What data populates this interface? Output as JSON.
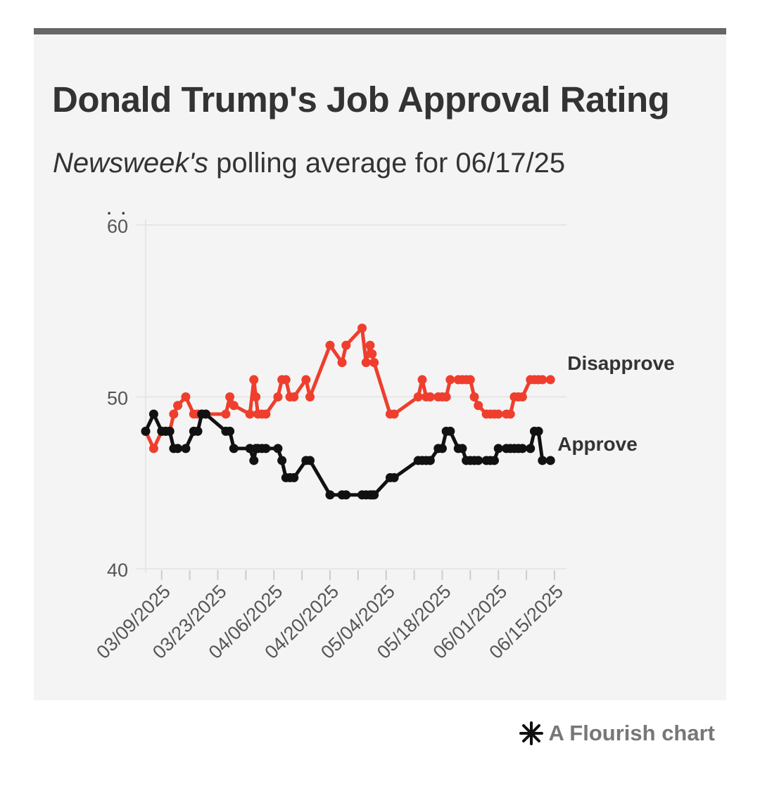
{
  "header": {
    "title": "Donald Trump's Job Approval Rating",
    "subtitle_italic": "Newsweek's",
    "subtitle_rest": " polling average for 06/17/25",
    "dots": ". ."
  },
  "credit": {
    "text": "A Flourish chart",
    "icon": "flourish-asterisk-icon"
  },
  "colors": {
    "approve": "#111111",
    "disapprove": "#ef3e2d",
    "axis_text": "#555555",
    "grid": "#e6e6e6",
    "label": "#333333"
  },
  "chart_data": {
    "type": "line",
    "title": "Donald Trump's Job Approval Rating",
    "x_start": "03/05/2025",
    "x_tick_labels": [
      "03/09/2025",
      "03/23/2025",
      "04/06/2025",
      "04/20/2025",
      "05/04/2025",
      "05/18/2025",
      "06/01/2025",
      "06/15/2025"
    ],
    "x_tick_days": [
      4,
      18,
      32,
      46,
      60,
      74,
      88,
      102
    ],
    "x_minor_tick_days": [
      11,
      25,
      39,
      53,
      67,
      81,
      95
    ],
    "xlim": [
      0,
      105
    ],
    "ylim": [
      40,
      60
    ],
    "y_ticks": [
      40,
      50,
      60
    ],
    "grid": true,
    "series": [
      {
        "name": "Disapprove",
        "label": "Disapprove",
        "color": "#ef3e2d",
        "x": [
          0,
          2,
          4,
          5,
          6,
          7,
          8,
          10,
          12,
          13,
          14,
          15,
          20,
          21,
          22,
          26,
          27,
          27.5,
          28,
          29,
          30,
          33,
          34,
          35,
          36,
          37,
          40,
          41,
          46,
          49,
          50,
          54,
          55,
          56,
          56.5,
          57,
          61,
          62,
          68,
          69,
          70,
          71,
          73,
          74,
          75,
          76,
          78,
          79,
          80,
          81,
          82,
          83,
          85,
          86,
          87,
          88,
          90,
          91,
          92,
          93,
          94,
          96,
          97,
          98,
          99,
          101
        ],
        "values": [
          48,
          47,
          48,
          48,
          48,
          49,
          49.5,
          50,
          49,
          49,
          49,
          49,
          49,
          50,
          49.5,
          49,
          51,
          50,
          49,
          49,
          49,
          50,
          51,
          51,
          50,
          50,
          51,
          50,
          53,
          52,
          53,
          54,
          52,
          53,
          52.5,
          52,
          49,
          49,
          50,
          51,
          50,
          50,
          50,
          50,
          50,
          51,
          51,
          51,
          51,
          51,
          50,
          49.5,
          49,
          49,
          49,
          49,
          49,
          49,
          50,
          50,
          50,
          51,
          51,
          51,
          51,
          51
        ]
      },
      {
        "name": "Approve",
        "label": "Approve",
        "color": "#111111",
        "x": [
          0,
          2,
          4,
          5,
          6,
          7,
          8,
          10,
          12,
          13,
          14,
          15,
          20,
          21,
          22,
          26,
          27,
          27.5,
          28,
          29,
          30,
          33,
          34,
          35,
          36,
          37,
          40,
          41,
          46,
          49,
          50,
          54,
          55,
          56,
          56.5,
          57,
          61,
          62,
          68,
          69,
          70,
          71,
          73,
          74,
          75,
          76,
          78,
          79,
          80,
          81,
          82,
          83,
          85,
          86,
          87,
          88,
          90,
          91,
          92,
          93,
          94,
          96,
          97,
          98,
          99,
          101
        ],
        "values": [
          48,
          49,
          48,
          48,
          48,
          47,
          47,
          47,
          48,
          48,
          49,
          49,
          48,
          48,
          47,
          47,
          46.3,
          47,
          47,
          47,
          47,
          47,
          46.3,
          45.3,
          45.3,
          45.3,
          46.3,
          46.3,
          44.3,
          44.3,
          44.3,
          44.3,
          44.3,
          44.3,
          44.3,
          44.3,
          45.3,
          45.3,
          46.3,
          46.3,
          46.3,
          46.3,
          47,
          47,
          48,
          48,
          47,
          47,
          46.3,
          46.3,
          46.3,
          46.3,
          46.3,
          46.3,
          46.3,
          47,
          47,
          47,
          47,
          47,
          47,
          47,
          48,
          48,
          46.3,
          46.3
        ]
      }
    ]
  }
}
